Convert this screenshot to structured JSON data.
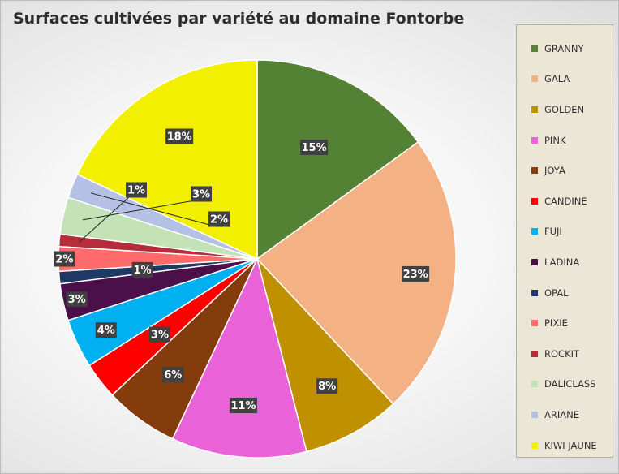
{
  "chart_data": {
    "type": "pie",
    "title": "Surfaces cultivées par variété au domaine Fontorbe",
    "legend_position": "right",
    "categories": [
      "GRANNY",
      "GALA",
      "GOLDEN",
      "PINK",
      "JOYA",
      "CANDINE",
      "FUJI",
      "LADINA",
      "OPAL",
      "PIXIE",
      "ROCKIT",
      "DALICLASS",
      "ARIANE",
      "KIWI JAUNE"
    ],
    "values": [
      15,
      23,
      8,
      11,
      6,
      3,
      4,
      3,
      1,
      2,
      1,
      3,
      2,
      18
    ],
    "labels": [
      "15%",
      "23%",
      "8%",
      "11%",
      "6%",
      "3%",
      "4%",
      "3%",
      "1%",
      "2%",
      "1%",
      "3%",
      "2%",
      "18%"
    ],
    "colors": [
      "#548235",
      "#f4b183",
      "#bf9000",
      "#e962d8",
      "#843c0c",
      "#ff0000",
      "#00b0f0",
      "#4b0f49",
      "#1f3864",
      "#ff6a6a",
      "#b52c3a",
      "#c3e3b7",
      "#b4c0e4",
      "#f2f000"
    ]
  }
}
